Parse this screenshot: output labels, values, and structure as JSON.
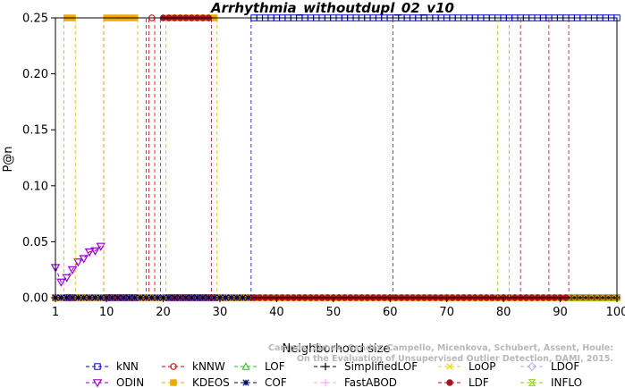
{
  "chart_data": {
    "type": "line",
    "title": "Arrhythmia_withoutdupl_02_v10",
    "xlabel": "Neighborhood size",
    "ylabel": "P@n",
    "xlim": [
      1,
      100
    ],
    "ylim": [
      0,
      0.25
    ],
    "x_ticks": [
      1,
      10,
      20,
      30,
      40,
      50,
      60,
      70,
      80,
      90,
      100
    ],
    "y_ticks": [
      0.0,
      0.05,
      0.1,
      0.15,
      0.2,
      0.25
    ],
    "x_tick_labels": [
      "1",
      "10",
      "20",
      "30",
      "40",
      "50",
      "60",
      "70",
      "80",
      "90",
      "100"
    ],
    "y_tick_labels": [
      "0.00",
      "0.05",
      "0.10",
      "0.15",
      "0.20",
      "0.25"
    ],
    "grid": false,
    "legend_position": "bottom",
    "watermark": "Campos, Zimek, Sander, Campello, Micenkova, Schubert, Assent, Houle: On the Evaluation of Unsupervised Outlier Detection, DAMI, 2015.",
    "series": [
      {
        "name": "kNN",
        "color": "#0000cc",
        "marker": "square",
        "segments": [
          {
            "x": [
              1,
              35
            ],
            "y": [
              0,
              0
            ]
          },
          {
            "x": [
              36,
              100
            ],
            "y": [
              0.25,
              0.25
            ]
          }
        ],
        "jumps": [
          35.5
        ]
      },
      {
        "name": "kNNW",
        "color": "#cc0000",
        "marker": "circle",
        "segments": [
          {
            "x": [
              1,
              17
            ],
            "y": [
              0,
              0
            ]
          },
          {
            "x": [
              18,
              18
            ],
            "y": [
              0.25,
              0.25
            ]
          },
          {
            "x": [
              19,
              100
            ],
            "y": [
              0,
              0
            ]
          }
        ],
        "jumps": [
          17.5,
          18.5
        ]
      },
      {
        "name": "LOF",
        "color": "#22bb22",
        "marker": "triangle",
        "segments": [],
        "jumps": []
      },
      {
        "name": "SimplifiedLOF",
        "color": "#000000",
        "marker": "plus",
        "segments": [],
        "jumps": []
      },
      {
        "name": "LoOP",
        "color": "#dddd00",
        "marker": "x",
        "segments": [],
        "jumps": []
      },
      {
        "name": "LDOF",
        "color": "#aaaaee",
        "marker": "diamond",
        "segments": [],
        "jumps": []
      },
      {
        "name": "ODIN",
        "color": "#9900cc",
        "marker": "triangle-down",
        "points": [
          [
            1,
            0.027
          ],
          [
            2,
            0.014
          ],
          [
            3,
            0.018
          ],
          [
            4,
            0.025
          ],
          [
            5,
            0.032
          ],
          [
            6,
            0.035
          ],
          [
            7,
            0.041
          ],
          [
            8,
            0.042
          ],
          [
            9,
            0.046
          ]
        ],
        "jumps": [
          9.5
        ]
      },
      {
        "name": "KDEOS",
        "color": "#f0a800",
        "marker": "square-filled",
        "segments": [
          {
            "x": [
              1,
              2
            ],
            "y": [
              0,
              0
            ]
          },
          {
            "x": [
              3,
              4
            ],
            "y": [
              0.25,
              0.25
            ]
          },
          {
            "x": [
              5,
              9
            ],
            "y": [
              0,
              0
            ]
          },
          {
            "x": [
              10,
              15
            ],
            "y": [
              0.25,
              0.25
            ]
          },
          {
            "x": [
              16,
              20
            ],
            "y": [
              0,
              0
            ]
          },
          {
            "x": [
              21,
              29
            ],
            "y": [
              0.25,
              0.25
            ]
          },
          {
            "x": [
              30,
              100
            ],
            "y": [
              0,
              0
            ]
          }
        ],
        "jumps": [
          2.5,
          4.5,
          9.5,
          15.5,
          20.5,
          29.5
        ]
      },
      {
        "name": "COF",
        "color": "#000066",
        "marker": "asterisk",
        "segments": [
          {
            "x": [
              1,
              36
            ],
            "y": [
              0,
              0
            ]
          }
        ],
        "jumps": []
      },
      {
        "name": "FastABOD",
        "color": "#ffaaff",
        "marker": "plus",
        "segments": [],
        "jumps": []
      },
      {
        "name": "LDF",
        "color": "#aa1122",
        "marker": "circle-filled",
        "segments": [
          {
            "x": [
              20,
              21
            ],
            "y": [
              0.25,
              0.25
            ]
          },
          {
            "x": [
              22,
              28
            ],
            "y": [
              0.25,
              0.25
            ]
          },
          {
            "x": [
              36,
              100
            ],
            "y": [
              0,
              0
            ]
          }
        ],
        "jumps": [
          17,
          19.5,
          28.5,
          60.5,
          83,
          88,
          91.5
        ]
      },
      {
        "name": "INFLO",
        "color": "#88cc00",
        "marker": "hourglass",
        "segments": [
          {
            "x": [
              92,
              100
            ],
            "y": [
              0,
              0
            ]
          }
        ],
        "jumps": [
          79,
          81
        ]
      }
    ]
  }
}
